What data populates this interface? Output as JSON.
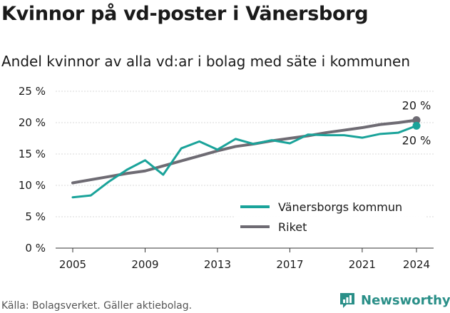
{
  "title": "Kvinnor på vd-poster i Vänersborg",
  "subtitle": "Andel kvinnor av alla vd:ar i bolag med säte i kommunen",
  "source": "Källa: Bolagsverket. Gäller aktiebolag.",
  "brand": "Newsworthy",
  "colors": {
    "kommun": "#1aa39a",
    "riket": "#6e6b73",
    "grid": "#d9d9d9",
    "text": "#1a1a1a",
    "brand": "#2a8f88"
  },
  "chart_data": {
    "type": "line",
    "title": "Kvinnor på vd-poster i Vänersborg",
    "subtitle": "Andel kvinnor av alla vd:ar i bolag med säte i kommunen",
    "x": [
      2005,
      2006,
      2007,
      2008,
      2009,
      2010,
      2011,
      2012,
      2013,
      2014,
      2015,
      2016,
      2017,
      2018,
      2019,
      2020,
      2021,
      2022,
      2023,
      2024
    ],
    "x_ticks": [
      2005,
      2009,
      2013,
      2017,
      2021,
      2024
    ],
    "x_tick_labels": [
      "2005",
      "2009",
      "2013",
      "2017",
      "2021",
      "2024"
    ],
    "xlim": [
      2005,
      2024
    ],
    "ylim": [
      0,
      25
    ],
    "y_ticks": [
      0,
      5,
      10,
      15,
      20,
      25
    ],
    "y_tick_labels": [
      "0 %",
      "5 %",
      "10 %",
      "15 %",
      "20 %",
      "25 %"
    ],
    "grid": "horizontal",
    "legend_position": "bottom-right",
    "series": [
      {
        "name": "Vänersborgs kommun",
        "values": [
          8.1,
          8.4,
          10.6,
          12.5,
          14.0,
          11.7,
          15.9,
          17.0,
          15.7,
          17.4,
          16.6,
          17.2,
          16.7,
          18.1,
          18.0,
          18.0,
          17.6,
          18.2,
          18.4,
          19.5
        ],
        "end_label": "20 %"
      },
      {
        "name": "Riket",
        "values": [
          10.4,
          10.9,
          11.4,
          11.9,
          12.3,
          13.1,
          13.9,
          14.7,
          15.5,
          16.2,
          16.6,
          17.1,
          17.5,
          17.9,
          18.4,
          18.8,
          19.2,
          19.7,
          20.0,
          20.4
        ],
        "end_label": "20 %"
      }
    ]
  }
}
